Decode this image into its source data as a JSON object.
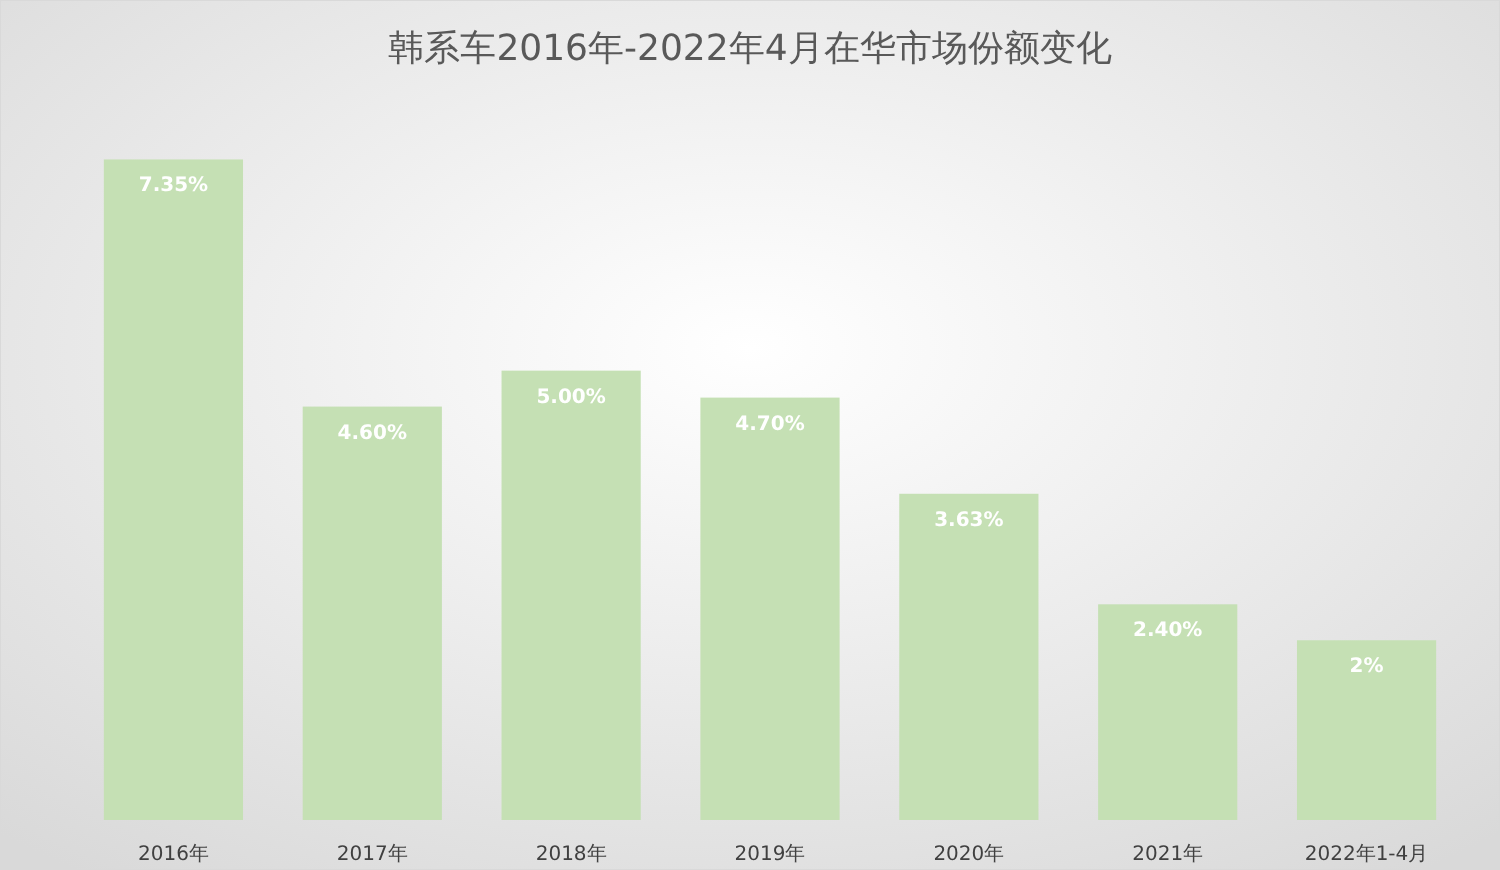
{
  "chart_data": {
    "type": "bar",
    "title": "韩系车2016年-2022年4月在华市场份额变化",
    "categories": [
      "2016年",
      "2017年",
      "2018年",
      "2019年",
      "2020年",
      "2021年",
      "2022年1-4月"
    ],
    "values": [
      7.35,
      4.6,
      5,
      4.7,
      3.63,
      2.4,
      2
    ],
    "value_labels": [
      "7.35%",
      "4.60%",
      "5.00%",
      "4.70%",
      "3.63%",
      "2.40%",
      "2%"
    ],
    "color": "#c5e0b4",
    "grid": false
  }
}
